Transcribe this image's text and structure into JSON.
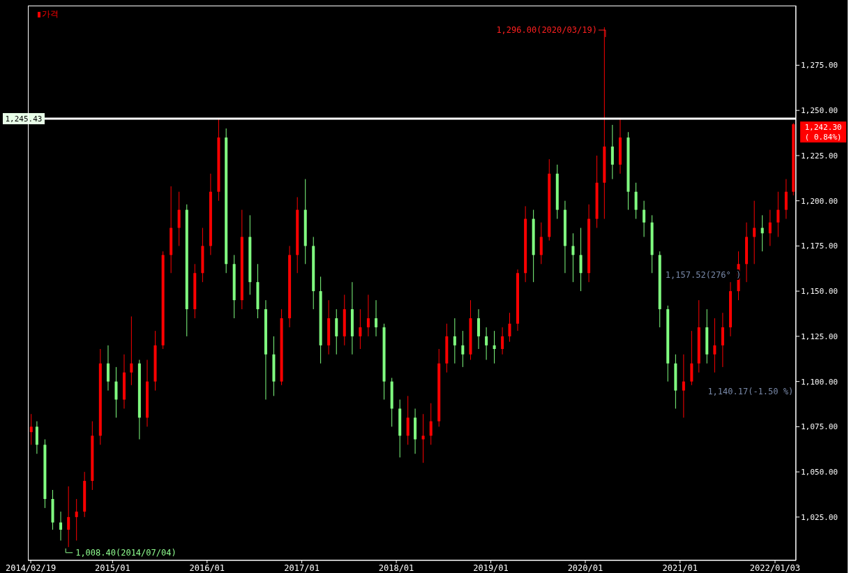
{
  "chart_data": {
    "type": "candlestick",
    "legend": "top left",
    "x": [
      "2014-02-21",
      "2014-03-15",
      "2014-04-15",
      "2014-05-15",
      "2014-06-15",
      "2014-07-15",
      "2014-08-15",
      "2014-09-15",
      "2014-10-15",
      "2014-11-15",
      "2014-12-15",
      "2015-01-15",
      "2015-02-15",
      "2015-03-15",
      "2015-04-15",
      "2015-05-15",
      "2015-06-15",
      "2015-07-15",
      "2015-08-15",
      "2015-09-15",
      "2015-10-15",
      "2015-11-15",
      "2015-12-15",
      "2016-01-15",
      "2016-02-15",
      "2016-03-15",
      "2016-04-15",
      "2016-05-15",
      "2016-06-15",
      "2016-07-15",
      "2016-08-15",
      "2016-09-15",
      "2016-10-15",
      "2016-11-15",
      "2016-12-15",
      "2017-01-15",
      "2017-02-15",
      "2017-03-15",
      "2017-04-15",
      "2017-05-15",
      "2017-06-15",
      "2017-07-15",
      "2017-08-15",
      "2017-09-15",
      "2017-10-15",
      "2017-11-15",
      "2017-12-15",
      "2018-01-15",
      "2018-02-15",
      "2018-03-15",
      "2018-04-15",
      "2018-05-15",
      "2018-06-15",
      "2018-07-15",
      "2018-08-15",
      "2018-09-15",
      "2018-10-15",
      "2018-11-15",
      "2018-12-15",
      "2019-01-15",
      "2019-02-15",
      "2019-03-15",
      "2019-04-15",
      "2019-05-15",
      "2019-06-15",
      "2019-07-15",
      "2019-08-15",
      "2019-09-15",
      "2019-10-15",
      "2019-11-15",
      "2019-12-15",
      "2020-01-15",
      "2020-02-15",
      "2020-03-15",
      "2020-04-15",
      "2020-05-15",
      "2020-06-15",
      "2020-07-15",
      "2020-08-15",
      "2020-09-15",
      "2020-10-15",
      "2020-11-15",
      "2020-12-15",
      "2021-01-15",
      "2021-02-15",
      "2021-03-15",
      "2021-04-15",
      "2021-05-15",
      "2021-06-15",
      "2021-07-15",
      "2021-08-15",
      "2021-09-15",
      "2021-10-15",
      "2021-11-15",
      "2021-12-15",
      "2022-01-15",
      "2022-02-15",
      "2022-03-15"
    ],
    "series": [
      {
        "name": "가격",
        "color": "#ff0000",
        "colors": [
          "#ff0000",
          "#80ff80",
          "#80ff80",
          "#80ff80",
          "#80ff80",
          "#ff0000",
          "#ff0000",
          "#ff0000",
          "#ff0000",
          "#ff0000",
          "#80ff80",
          "#80ff80",
          "#ff0000",
          "#ff0000",
          "#80ff80",
          "#ff0000",
          "#ff0000",
          "#ff0000",
          "#ff0000",
          "#ff0000",
          "#80ff80",
          "#ff0000",
          "#ff0000",
          "#ff0000",
          "#ff0000",
          "#80ff80",
          "#80ff80",
          "#ff0000",
          "#80ff80",
          "#80ff80",
          "#80ff80",
          "#80ff80",
          "#ff0000",
          "#ff0000",
          "#ff0000",
          "#80ff80",
          "#80ff80",
          "#80ff80",
          "#ff0000",
          "#80ff80",
          "#ff0000",
          "#80ff80",
          "#ff0000",
          "#ff0000",
          "#80ff80",
          "#80ff80",
          "#80ff80",
          "#80ff80",
          "#ff0000",
          "#80ff80",
          "#ff0000",
          "#ff0000",
          "#ff0000",
          "#ff0000",
          "#80ff80",
          "#80ff80",
          "#ff0000",
          "#80ff80",
          "#80ff80",
          "#80ff80",
          "#ff0000",
          "#ff0000",
          "#ff0000",
          "#ff0000",
          "#80ff80",
          "#ff0000",
          "#ff0000",
          "#80ff80",
          "#80ff80",
          "#80ff80",
          "#80ff80",
          "#ff0000",
          "#ff0000",
          "#ff0000",
          "#80ff80",
          "#ff0000",
          "#80ff80",
          "#80ff80",
          "#80ff80",
          "#80ff80",
          "#80ff80",
          "#80ff80",
          "#80ff80",
          "#ff0000",
          "#ff0000",
          "#ff0000",
          "#80ff80",
          "#ff0000",
          "#ff0000",
          "#ff0000",
          "#ff0000",
          "#ff0000",
          "#ff0000",
          "#80ff80",
          "#ff0000",
          "#ff0000",
          "#ff0000",
          "#ff0000"
        ],
        "ohlc": [
          [
            1072,
            1082,
            1065,
            1075
          ],
          [
            1075,
            1078,
            1060,
            1065
          ],
          [
            1065,
            1068,
            1030,
            1035
          ],
          [
            1035,
            1040,
            1018,
            1022
          ],
          [
            1022,
            1028,
            1012,
            1018
          ],
          [
            1018,
            1042,
            1008.4,
            1025
          ],
          [
            1025,
            1035,
            1012,
            1028
          ],
          [
            1028,
            1050,
            1025,
            1045
          ],
          [
            1045,
            1078,
            1040,
            1070
          ],
          [
            1070,
            1118,
            1065,
            1110
          ],
          [
            1110,
            1120,
            1095,
            1100
          ],
          [
            1100,
            1108,
            1080,
            1090
          ],
          [
            1090,
            1115,
            1085,
            1105
          ],
          [
            1105,
            1136,
            1098,
            1110
          ],
          [
            1110,
            1112,
            1068,
            1080
          ],
          [
            1080,
            1112,
            1075,
            1100
          ],
          [
            1100,
            1128,
            1095,
            1120
          ],
          [
            1120,
            1172,
            1118,
            1170
          ],
          [
            1170,
            1208,
            1160,
            1185
          ],
          [
            1185,
            1205,
            1175,
            1195
          ],
          [
            1195,
            1198,
            1125,
            1140
          ],
          [
            1140,
            1165,
            1135,
            1160
          ],
          [
            1160,
            1185,
            1155,
            1175
          ],
          [
            1175,
            1215,
            1170,
            1205
          ],
          [
            1205,
            1245,
            1200,
            1235
          ],
          [
            1235,
            1240,
            1160,
            1165
          ],
          [
            1165,
            1170,
            1135,
            1145
          ],
          [
            1145,
            1195,
            1140,
            1180
          ],
          [
            1180,
            1192,
            1148,
            1155
          ],
          [
            1155,
            1165,
            1135,
            1140
          ],
          [
            1140,
            1145,
            1090,
            1115
          ],
          [
            1115,
            1125,
            1092,
            1100
          ],
          [
            1100,
            1140,
            1098,
            1135
          ],
          [
            1135,
            1175,
            1130,
            1170
          ],
          [
            1170,
            1202,
            1160,
            1195
          ],
          [
            1195,
            1212,
            1165,
            1175
          ],
          [
            1175,
            1180,
            1140,
            1150
          ],
          [
            1150,
            1158,
            1110,
            1120
          ],
          [
            1120,
            1145,
            1115,
            1135
          ],
          [
            1135,
            1140,
            1115,
            1125
          ],
          [
            1125,
            1148,
            1120,
            1140
          ],
          [
            1140,
            1155,
            1115,
            1125
          ],
          [
            1125,
            1140,
            1118,
            1130
          ],
          [
            1130,
            1148,
            1125,
            1135
          ],
          [
            1135,
            1145,
            1125,
            1130
          ],
          [
            1130,
            1132,
            1090,
            1100
          ],
          [
            1100,
            1102,
            1075,
            1085
          ],
          [
            1085,
            1090,
            1058,
            1070
          ],
          [
            1070,
            1092,
            1065,
            1080
          ],
          [
            1080,
            1085,
            1060,
            1068
          ],
          [
            1068,
            1082,
            1055,
            1070
          ],
          [
            1070,
            1088,
            1065,
            1078
          ],
          [
            1078,
            1118,
            1075,
            1110
          ],
          [
            1110,
            1132,
            1105,
            1125
          ],
          [
            1125,
            1135,
            1110,
            1120
          ],
          [
            1120,
            1128,
            1108,
            1115
          ],
          [
            1115,
            1145,
            1112,
            1135
          ],
          [
            1135,
            1140,
            1118,
            1125
          ],
          [
            1125,
            1130,
            1112,
            1120
          ],
          [
            1120,
            1128,
            1110,
            1118
          ],
          [
            1118,
            1130,
            1115,
            1125
          ],
          [
            1125,
            1138,
            1122,
            1132
          ],
          [
            1132,
            1162,
            1128,
            1160
          ],
          [
            1160,
            1197,
            1155,
            1190
          ],
          [
            1190,
            1195,
            1155,
            1170
          ],
          [
            1170,
            1188,
            1165,
            1180
          ],
          [
            1180,
            1223,
            1178,
            1215
          ],
          [
            1215,
            1220,
            1190,
            1195
          ],
          [
            1195,
            1200,
            1160,
            1175
          ],
          [
            1175,
            1182,
            1155,
            1170
          ],
          [
            1170,
            1185,
            1150,
            1160
          ],
          [
            1160,
            1198,
            1155,
            1190
          ],
          [
            1190,
            1225,
            1185,
            1210
          ],
          [
            1210,
            1296,
            1190,
            1230
          ],
          [
            1230,
            1242,
            1212,
            1220
          ],
          [
            1220,
            1245,
            1215,
            1235
          ],
          [
            1235,
            1238,
            1195,
            1205
          ],
          [
            1205,
            1210,
            1190,
            1195
          ],
          [
            1195,
            1200,
            1180,
            1188
          ],
          [
            1188,
            1192,
            1160,
            1170
          ],
          [
            1170,
            1172,
            1130,
            1140
          ],
          [
            1140,
            1142,
            1100,
            1110
          ],
          [
            1110,
            1115,
            1085,
            1095
          ],
          [
            1095,
            1115,
            1080,
            1100
          ],
          [
            1100,
            1128,
            1098,
            1110
          ],
          [
            1110,
            1145,
            1105,
            1130
          ],
          [
            1130,
            1140,
            1110,
            1115
          ],
          [
            1115,
            1135,
            1105,
            1120
          ],
          [
            1120,
            1138,
            1108,
            1130
          ],
          [
            1130,
            1155,
            1125,
            1150
          ],
          [
            1150,
            1172,
            1145,
            1165
          ],
          [
            1165,
            1188,
            1155,
            1180
          ],
          [
            1180,
            1200,
            1165,
            1185
          ],
          [
            1185,
            1192,
            1172,
            1182
          ],
          [
            1182,
            1195,
            1175,
            1188
          ],
          [
            1188,
            1205,
            1180,
            1195
          ],
          [
            1195,
            1212,
            1190,
            1205
          ],
          [
            1205,
            1243,
            1203,
            1242.3
          ]
        ]
      }
    ],
    "xlim": [
      "2014-02-08",
      "2022-03-25"
    ],
    "xticks": [
      {
        "value": "2014-02-19",
        "label": "2014/02/19"
      },
      {
        "value": "2015-01-01",
        "label": "2015/01"
      },
      {
        "value": "2016-01-01",
        "label": "2016/01"
      },
      {
        "value": "2017-01-01",
        "label": "2017/01"
      },
      {
        "value": "2018-01-01",
        "label": "2018/01"
      },
      {
        "value": "2019-01-01",
        "label": "2019/01"
      },
      {
        "value": "2020-01-01",
        "label": "2020/01"
      },
      {
        "value": "2021-01-01",
        "label": "2021/01"
      },
      {
        "value": "2022-01-03",
        "label": "2022/01/03"
      }
    ],
    "ylim": [
      1001,
      1308
    ],
    "yticks": [
      {
        "value": 1025,
        "label": "1,025.00"
      },
      {
        "value": 1050,
        "label": "1,050.00"
      },
      {
        "value": 1075,
        "label": "1,075.00"
      },
      {
        "value": 1100,
        "label": "1,100.00"
      },
      {
        "value": 1125,
        "label": "1,125.00"
      },
      {
        "value": 1150,
        "label": "1,150.00"
      },
      {
        "value": 1175,
        "label": "1,175.00"
      },
      {
        "value": 1200,
        "label": "1,200.00"
      },
      {
        "value": 1225,
        "label": "1,225.00"
      },
      {
        "value": 1250,
        "label": "1,250.00"
      },
      {
        "value": 1275,
        "label": "1,275.00"
      }
    ],
    "ref_lines": [
      {
        "axis": "y",
        "value": 1245.43,
        "label": "1,245.43",
        "color": "#ffffff"
      }
    ],
    "annotations": [
      {
        "text": "1,296.00(2020/03/19)",
        "x": "2020-03-19",
        "y": 1296
      },
      {
        "text": "1,008.40(2014/07/04)",
        "x": "2014-07-04",
        "y": 1008.4
      },
      "1,157.52(276° )",
      "1,140.17(-1.50 %)",
      {
        "text": "1,242.30 ( 0.84%)",
        "x": "2022-03-15",
        "y": 1242.3
      }
    ]
  }
}
